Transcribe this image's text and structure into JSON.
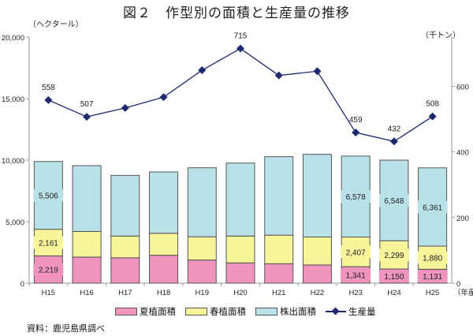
{
  "chart_data": {
    "type": "bar",
    "title": "図２　作型別の面積と生産量の推移",
    "ylabel_left": "（ヘクタール）",
    "ylabel_right": "（千トン）",
    "xlabel": "（年産）",
    "categories": [
      "H15",
      "H16",
      "H17",
      "H18",
      "H19",
      "H20",
      "H21",
      "H22",
      "H23",
      "H24",
      "H25"
    ],
    "ylim_left": [
      0,
      20000
    ],
    "yticks_left": [
      "0",
      "5,000",
      "10,000",
      "15,000",
      "20,000"
    ],
    "yticks_left_values": [
      0,
      5000,
      10000,
      15000,
      20000
    ],
    "ylim_right": [
      0,
      750
    ],
    "yticks_right": [
      "0",
      "200",
      "400",
      "600"
    ],
    "yticks_right_values": [
      0,
      200,
      400,
      600
    ],
    "series": [
      {
        "name": "夏植面積",
        "kind": "stacked-bar",
        "color": "#ef93bf",
        "values": [
          2219,
          2120,
          2060,
          2270,
          1880,
          1650,
          1580,
          1480,
          1341,
          1150,
          1131
        ],
        "labels": [
          "2,219",
          null,
          null,
          null,
          null,
          null,
          null,
          null,
          "1,341",
          "1,150",
          "1,131"
        ]
      },
      {
        "name": "春植面積",
        "kind": "stacked-bar",
        "color": "#f7f49a",
        "values": [
          2161,
          2080,
          1770,
          1780,
          1890,
          2180,
          2320,
          2270,
          2407,
          2299,
          1880
        ],
        "labels": [
          "2,161",
          null,
          null,
          null,
          null,
          null,
          null,
          null,
          "2,407",
          "2,299",
          "1,880"
        ]
      },
      {
        "name": "株出面積",
        "kind": "stacked-bar",
        "color": "#b9e2e8",
        "values": [
          5506,
          5350,
          4930,
          4990,
          5610,
          5930,
          6380,
          6720,
          6578,
          6548,
          6361
        ],
        "labels": [
          "5,506",
          null,
          null,
          null,
          null,
          null,
          null,
          null,
          "6,578",
          "6,548",
          "6,361"
        ]
      },
      {
        "name": "生産量",
        "kind": "line",
        "axis": "right",
        "color": "#1f2a6e",
        "values": [
          558,
          507,
          534,
          567,
          649,
          715,
          633,
          646,
          459,
          432,
          508
        ],
        "labels": [
          "558",
          "507",
          null,
          null,
          null,
          "715",
          null,
          null,
          "459",
          "432",
          "508"
        ]
      }
    ],
    "legend": "bottom",
    "grid": false
  },
  "source": "資料：鹿児島県調べ"
}
